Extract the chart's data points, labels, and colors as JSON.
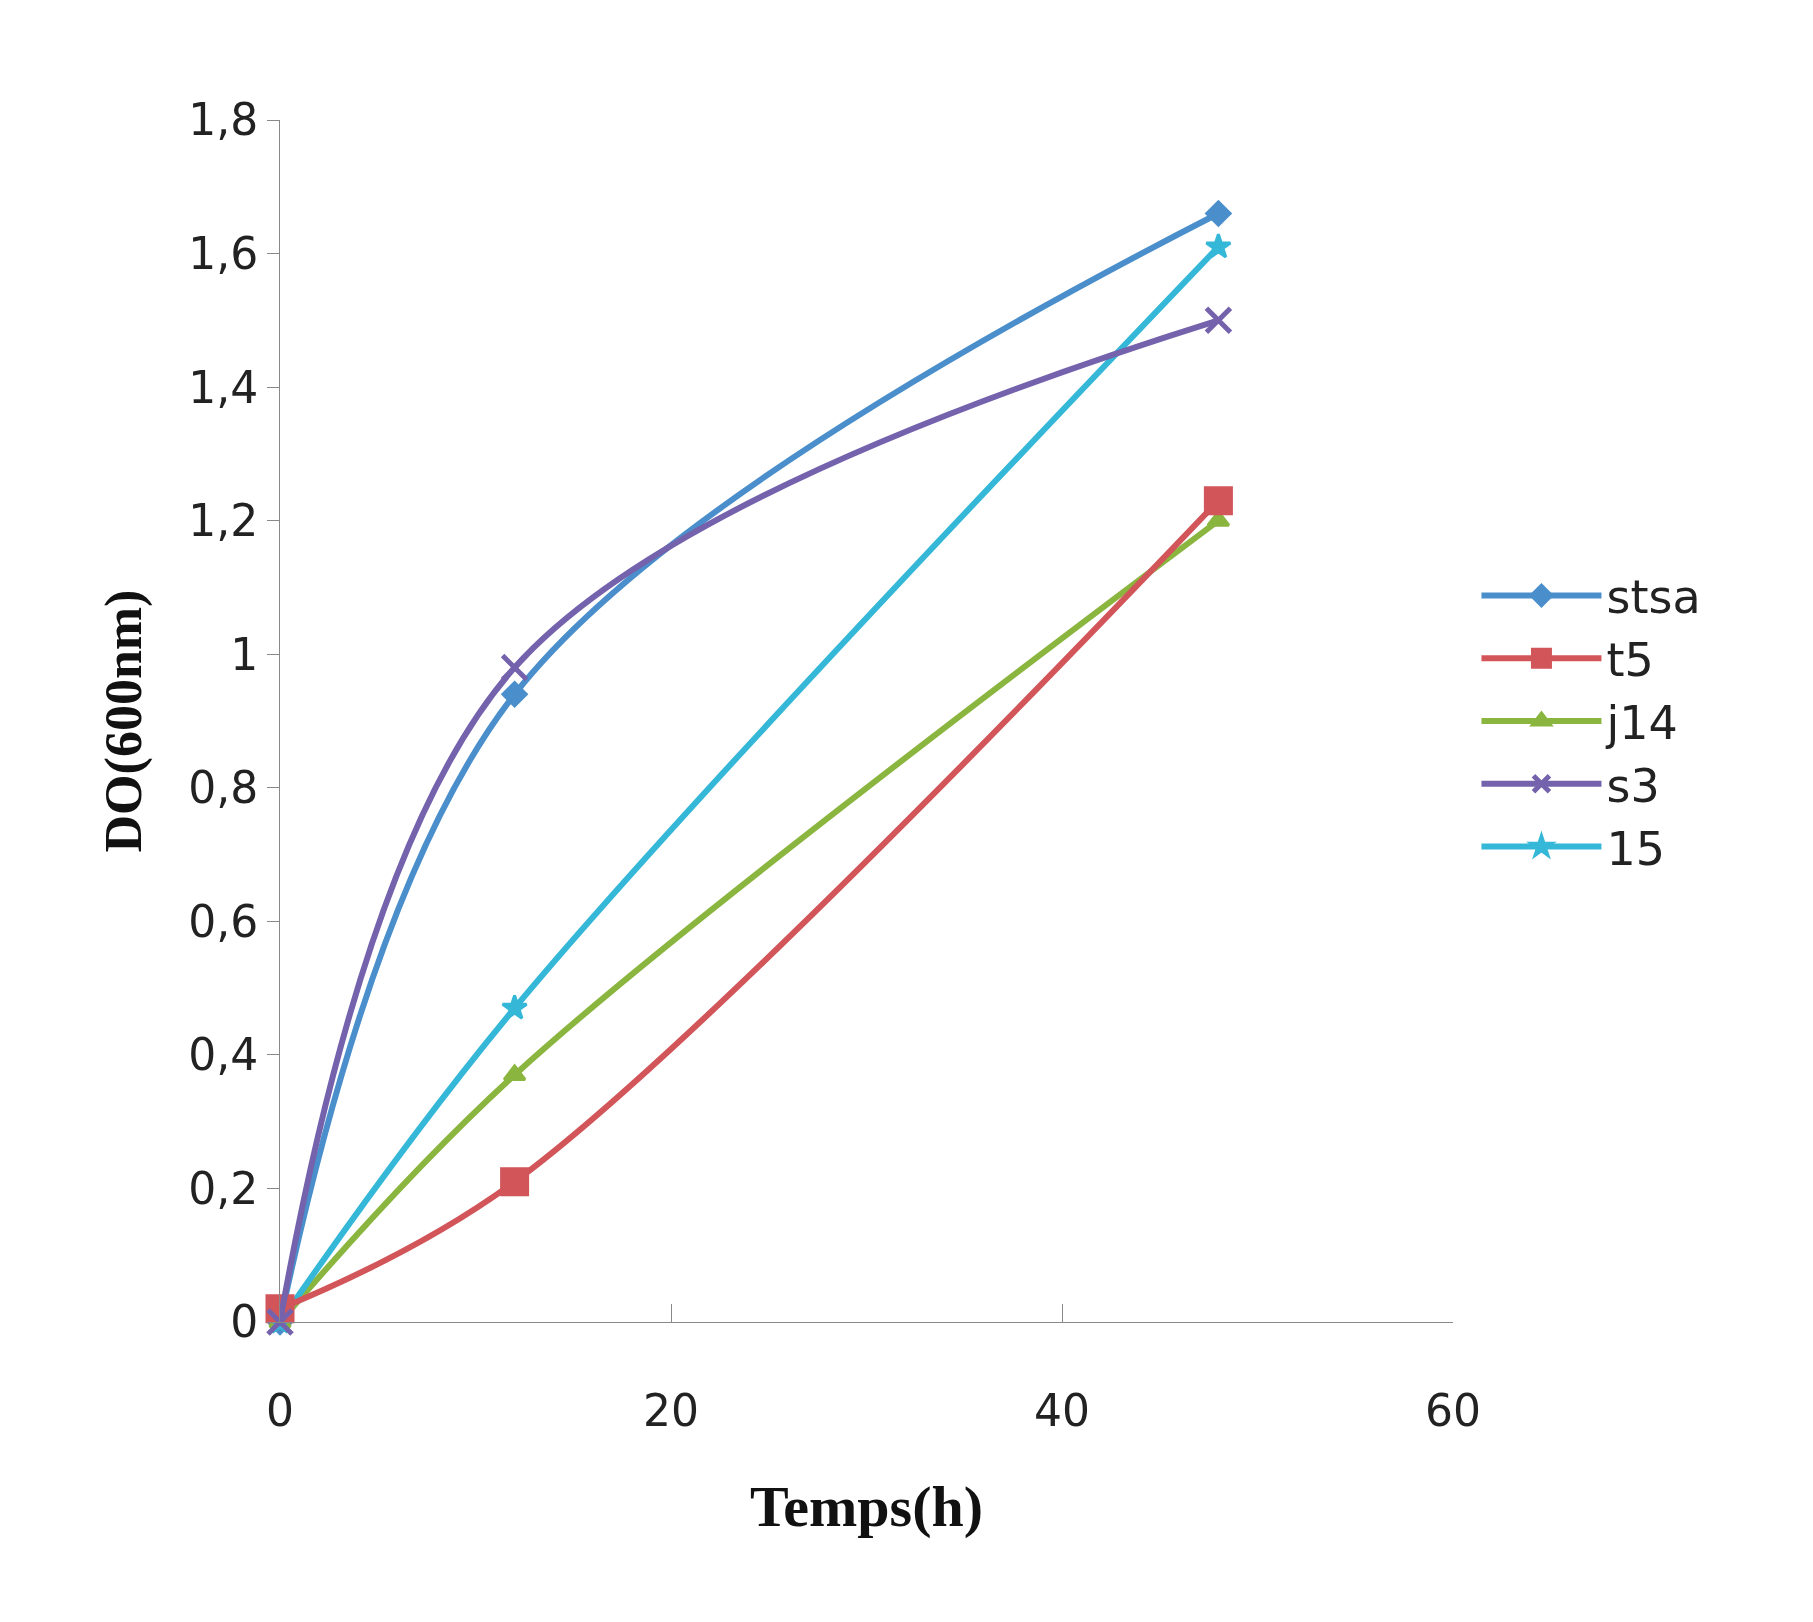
{
  "chart_data": {
    "type": "line",
    "xlabel": "Temps(h)",
    "ylabel": "DO(600nm)",
    "x": [
      0,
      12,
      48
    ],
    "series": [
      {
        "name": "stsa",
        "color": "#4a8fcb",
        "marker": "diamond",
        "values": [
          0,
          0.94,
          1.66
        ]
      },
      {
        "name": "t5",
        "color": "#d2555a",
        "marker": "square",
        "values": [
          0.02,
          0.21,
          1.23
        ]
      },
      {
        "name": "j14",
        "color": "#8ab53f",
        "marker": "triangle",
        "values": [
          0,
          0.37,
          1.2
        ]
      },
      {
        "name": "s3",
        "color": "#7462ad",
        "marker": "cross",
        "values": [
          0,
          0.98,
          1.5
        ]
      },
      {
        "name": "15",
        "color": "#35b8d8",
        "marker": "star",
        "values": [
          0,
          0.47,
          1.61
        ]
      }
    ],
    "xlim": [
      0,
      60
    ],
    "xticks": [
      0,
      20,
      40,
      60
    ],
    "ylim": [
      0,
      1.8
    ],
    "yticks": [
      0,
      {
        "value": 0.2,
        "label": "0,2"
      },
      {
        "value": 0.4,
        "label": "0,4"
      },
      {
        "value": 0.6,
        "label": "0,6"
      },
      {
        "value": 0.8,
        "label": "0,8"
      },
      1,
      {
        "value": 1.2,
        "label": "1,2"
      },
      {
        "value": 1.4,
        "label": "1,4"
      },
      {
        "value": 1.6,
        "label": "1,6"
      },
      {
        "value": 1.8,
        "label": "1,8"
      }
    ],
    "grid": false,
    "legend": "right"
  }
}
